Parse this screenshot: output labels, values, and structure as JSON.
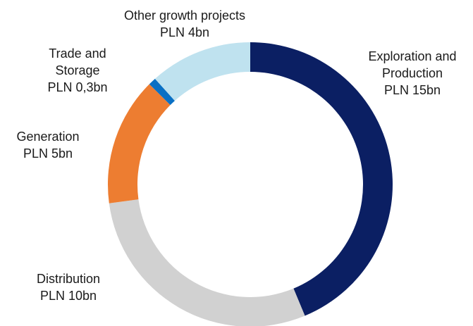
{
  "chart_data": {
    "type": "donut",
    "categories": [
      "Exploration and Production",
      "Distribution",
      "Generation",
      "Trade and Storage",
      "Other growth projects"
    ],
    "values": [
      15,
      10,
      5,
      0.3,
      4
    ],
    "value_labels": [
      "PLN 15bn",
      "PLN 10bn",
      "PLN 5bn",
      "PLN 0,3bn",
      "PLN 4bn"
    ],
    "colors": [
      "#0b1f63",
      "#d1d1d1",
      "#ed7d31",
      "#0a70c4",
      "#bfe2ef"
    ]
  }
}
